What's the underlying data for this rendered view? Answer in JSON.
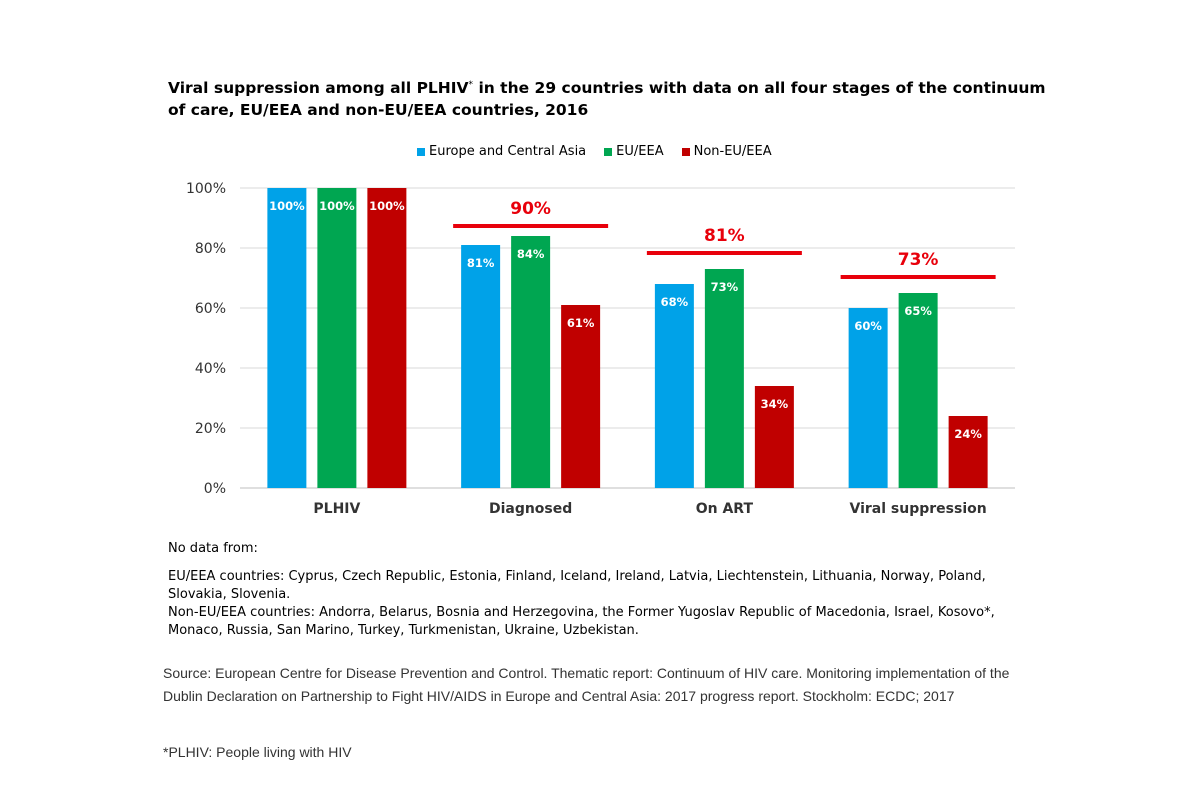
{
  "colors": {
    "europe_central_asia": "#00a2e8",
    "eu_eea": "#00a651",
    "non_eu_eea": "#c00000",
    "target": "#e8000b",
    "grid": "#d9d9d9"
  },
  "chart_data": {
    "type": "bar",
    "title_main": "Viral suppression among all PLHIV",
    "title_sup": "*",
    "title_rest": " in the 29 countries with data on all four stages of the continuum of care, EU/EEA and non-EU/EEA countries, 2016",
    "categories": [
      "PLHIV",
      "Diagnosed",
      "On ART",
      "Viral suppression"
    ],
    "series": [
      {
        "name": "Europe and Central Asia",
        "values": [
          100,
          81,
          68,
          60
        ],
        "labels": [
          "100%",
          "81%",
          "68%",
          "60%"
        ]
      },
      {
        "name": "EU/EEA",
        "values": [
          100,
          84,
          73,
          65
        ],
        "labels": [
          "100%",
          "84%",
          "73%",
          "65%"
        ]
      },
      {
        "name": "Non-EU/EEA",
        "values": [
          100,
          61,
          34,
          24
        ],
        "labels": [
          "100%",
          "61%",
          "34%",
          "24%"
        ]
      }
    ],
    "targets": [
      {
        "category": "Diagnosed",
        "value": 90,
        "label": "90%"
      },
      {
        "category": "On ART",
        "value": 81,
        "label": "81%"
      },
      {
        "category": "Viral suppression",
        "value": 73,
        "label": "73%"
      }
    ],
    "yticks": [
      "0%",
      "20%",
      "40%",
      "60%",
      "80%",
      "100%"
    ],
    "ylim": [
      0,
      100
    ],
    "legend_position": "top-center",
    "grid": true
  },
  "nodata": {
    "heading": "No data from:",
    "eu_line": "EU/EEA countries: Cyprus, Czech Republic, Estonia, Finland, Iceland, Ireland, Latvia, Liechtenstein, Lithuania, Norway, Poland, Slovakia, Slovenia.",
    "non_eu_line": "Non-EU/EEA countries: Andorra, Belarus, Bosnia and Herzegovina, the Former Yugoslav Republic of Macedonia, Israel, Kosovo*, Monaco, Russia, San Marino, Turkey, Turkmenistan, Ukraine, Uzbekistan."
  },
  "source": "Source: European Centre for Disease Prevention and Control. Thematic report: Continuum of HIV care. Monitoring implementation of the Dublin Declaration on Partnership to Fight HIV/AIDS in Europe and Central Asia: 2017 progress report. Stockholm: ECDC; 2017",
  "footnote": "*PLHIV: People living with HIV"
}
